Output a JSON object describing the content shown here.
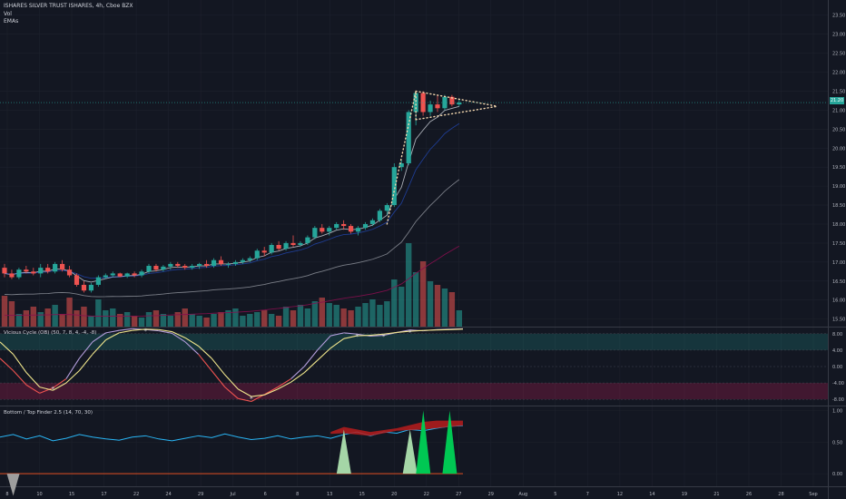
{
  "header": {
    "symbol_line": "ISHARES SILVER TRUST ISHARES, 4h, Cboe BZX",
    "volume_label": "Vol",
    "ema_label": "EMAs"
  },
  "price_badge": "21.20",
  "colors": {
    "background": "#131722",
    "up": "#26a69a",
    "down": "#ef5350",
    "grid": "#1e222d",
    "pattern": "#f5d9b0"
  },
  "chart_data": [
    {
      "type": "candlestick",
      "title": "ISHARES SILVER TRUST ISHARES, 4h, Cboe BZX",
      "ylim": [
        15.3,
        23.9
      ],
      "y_ticks": [
        "23.50",
        "23.00",
        "22.50",
        "22.00",
        "21.50",
        "21.00",
        "20.50",
        "20.00",
        "19.50",
        "19.00",
        "18.50",
        "18.00",
        "17.50",
        "17.00",
        "16.50",
        "16.00",
        "15.50"
      ],
      "y_tick_values": [
        23.5,
        23.0,
        22.5,
        22.0,
        21.5,
        21.0,
        20.5,
        20.0,
        19.5,
        19.0,
        18.5,
        18.0,
        17.5,
        17.0,
        16.5,
        16.0,
        15.5
      ],
      "last_price": 21.2,
      "x_tick_labels": [
        "8",
        "10",
        "15",
        "17",
        "22",
        "24",
        "29",
        "Jul",
        "6",
        "8",
        "13",
        "15",
        "20",
        "22",
        "27",
        "29",
        "Aug",
        "5",
        "7",
        "12",
        "14",
        "19",
        "21",
        "26",
        "28",
        "Sep"
      ],
      "ohlc": [
        [
          16.85,
          16.95,
          16.6,
          16.7
        ],
        [
          16.7,
          16.8,
          16.55,
          16.6
        ],
        [
          16.6,
          16.85,
          16.55,
          16.8
        ],
        [
          16.8,
          16.9,
          16.7,
          16.75
        ],
        [
          16.75,
          16.85,
          16.65,
          16.7
        ],
        [
          16.7,
          16.95,
          16.6,
          16.85
        ],
        [
          16.85,
          16.95,
          16.7,
          16.75
        ],
        [
          16.75,
          17.0,
          16.7,
          16.95
        ],
        [
          16.95,
          17.05,
          16.75,
          16.8
        ],
        [
          16.8,
          16.9,
          16.6,
          16.65
        ],
        [
          16.65,
          16.7,
          16.35,
          16.4
        ],
        [
          16.4,
          16.5,
          16.2,
          16.25
        ],
        [
          16.25,
          16.45,
          16.2,
          16.4
        ],
        [
          16.4,
          16.65,
          16.35,
          16.6
        ],
        [
          16.6,
          16.7,
          16.55,
          16.65
        ],
        [
          16.65,
          16.75,
          16.6,
          16.7
        ],
        [
          16.7,
          16.72,
          16.6,
          16.62
        ],
        [
          16.62,
          16.72,
          16.58,
          16.7
        ],
        [
          16.7,
          16.75,
          16.6,
          16.65
        ],
        [
          16.65,
          16.8,
          16.6,
          16.75
        ],
        [
          16.75,
          16.95,
          16.7,
          16.9
        ],
        [
          16.9,
          16.95,
          16.75,
          16.8
        ],
        [
          16.8,
          16.92,
          16.75,
          16.88
        ],
        [
          16.88,
          17.0,
          16.8,
          16.95
        ],
        [
          16.95,
          17.0,
          16.85,
          16.9
        ],
        [
          16.9,
          16.95,
          16.8,
          16.85
        ],
        [
          16.85,
          16.95,
          16.8,
          16.9
        ],
        [
          16.9,
          16.98,
          16.82,
          16.95
        ],
        [
          16.95,
          17.05,
          16.85,
          16.9
        ],
        [
          16.9,
          17.1,
          16.85,
          17.05
        ],
        [
          17.05,
          17.15,
          16.9,
          16.95
        ],
        [
          16.95,
          17.0,
          16.85,
          16.95
        ],
        [
          16.95,
          17.05,
          16.9,
          17.0
        ],
        [
          17.0,
          17.1,
          16.95,
          17.05
        ],
        [
          17.05,
          17.15,
          17.0,
          17.1
        ],
        [
          17.1,
          17.35,
          17.05,
          17.3
        ],
        [
          17.3,
          17.4,
          17.15,
          17.25
        ],
        [
          17.25,
          17.5,
          17.2,
          17.45
        ],
        [
          17.45,
          17.55,
          17.3,
          17.35
        ],
        [
          17.35,
          17.55,
          17.3,
          17.5
        ],
        [
          17.5,
          17.7,
          17.4,
          17.45
        ],
        [
          17.45,
          17.55,
          17.4,
          17.5
        ],
        [
          17.5,
          17.7,
          17.45,
          17.65
        ],
        [
          17.65,
          17.95,
          17.6,
          17.9
        ],
        [
          17.9,
          18.0,
          17.75,
          17.8
        ],
        [
          17.8,
          17.95,
          17.7,
          17.9
        ],
        [
          17.9,
          18.05,
          17.85,
          18.0
        ],
        [
          18.0,
          18.1,
          17.85,
          17.95
        ],
        [
          17.95,
          18.0,
          17.75,
          17.8
        ],
        [
          17.8,
          17.95,
          17.7,
          17.9
        ],
        [
          17.9,
          18.05,
          17.85,
          18.0
        ],
        [
          18.0,
          18.15,
          17.95,
          18.1
        ],
        [
          18.1,
          18.4,
          18.05,
          18.35
        ],
        [
          18.35,
          18.55,
          18.25,
          18.5
        ],
        [
          18.5,
          19.6,
          18.45,
          19.5
        ],
        [
          19.5,
          19.7,
          19.4,
          19.6
        ],
        [
          19.6,
          21.0,
          19.55,
          20.95
        ],
        [
          20.95,
          21.5,
          20.6,
          21.45
        ],
        [
          21.45,
          21.5,
          20.85,
          20.95
        ],
        [
          20.95,
          21.25,
          20.85,
          21.15
        ],
        [
          21.15,
          21.4,
          20.95,
          21.05
        ],
        [
          21.05,
          21.4,
          21.0,
          21.35
        ],
        [
          21.35,
          21.4,
          21.1,
          21.15
        ],
        [
          21.15,
          21.3,
          21.1,
          21.2
        ]
      ],
      "volume": [
        34,
        28,
        14,
        18,
        22,
        16,
        20,
        24,
        14,
        32,
        18,
        22,
        12,
        30,
        18,
        20,
        14,
        16,
        12,
        10,
        16,
        18,
        14,
        12,
        16,
        20,
        14,
        12,
        10,
        14,
        16,
        18,
        20,
        12,
        14,
        16,
        18,
        14,
        12,
        22,
        18,
        24,
        20,
        28,
        32,
        26,
        24,
        20,
        18,
        22,
        26,
        30,
        24,
        28,
        52,
        44,
        92,
        60,
        72,
        50,
        46,
        42,
        38,
        18
      ],
      "ema_series": [
        "EMA fast",
        "EMA slow"
      ]
    },
    {
      "type": "line",
      "title": "Vicious Cycle (OB) (50, 7, 8, 4, -4, -8)",
      "ylim": [
        -9.5,
        9.5
      ],
      "y_ticks": [
        "8.00",
        "4.00",
        "0.00",
        "-4.00",
        "-8.00"
      ],
      "y_tick_values": [
        8,
        4,
        0,
        -4,
        -8
      ],
      "bands": [
        {
          "from": 4,
          "to": 8,
          "color": "#26a69a"
        },
        {
          "from": -8,
          "to": -4,
          "color": "#e91e63"
        }
      ],
      "series": [
        {
          "values": [
            2,
            -1,
            -4.5,
            -6.5,
            -5.2,
            -3,
            2,
            6,
            8.2,
            8.8,
            9.2,
            9.0,
            8.7,
            8.1,
            6,
            3,
            -1,
            -5,
            -7.8,
            -8.5,
            -6.8,
            -5,
            -3,
            0,
            4,
            7.5,
            8.2,
            7.9,
            7.4,
            7.6,
            8.3,
            8.9,
            8.7,
            9.0,
            9.1,
            9.2
          ]
        },
        {
          "values": [
            6,
            3,
            -1.5,
            -5,
            -5.8,
            -4,
            -1,
            3,
            6.5,
            8.2,
            8.8,
            9.1,
            9.0,
            8.5,
            7,
            5,
            2,
            -2,
            -5.5,
            -7.3,
            -6.9,
            -5.5,
            -3.8,
            -1.5,
            1.5,
            4.5,
            6.8,
            7.5,
            7.6,
            7.9,
            8.3,
            8.6,
            8.8,
            8.9,
            9.0,
            9.1
          ]
        }
      ]
    },
    {
      "type": "line",
      "title": "Bottom / Top Finder 2.5 (14, 70, 30)",
      "ylim": [
        -0.2,
        1.05
      ],
      "y_ticks": [
        "1.00",
        "0.50",
        "0.00"
      ],
      "y_tick_values": [
        1.0,
        0.5,
        0.0
      ],
      "series": [
        {
          "values": [
            0.58,
            0.62,
            0.55,
            0.6,
            0.52,
            0.56,
            0.62,
            0.58,
            0.55,
            0.53,
            0.58,
            0.6,
            0.55,
            0.52,
            0.56,
            0.6,
            0.57,
            0.63,
            0.58,
            0.54,
            0.56,
            0.6,
            0.55,
            0.58,
            0.6,
            0.56,
            0.62,
            0.66,
            0.6,
            0.66,
            0.64,
            0.7,
            0.68,
            0.72,
            0.75,
            0.76
          ]
        }
      ],
      "signals": [
        {
          "type": "bottom",
          "x": 1,
          "height": 0.35,
          "color": "#9e9e9e"
        },
        {
          "type": "top",
          "x": 26,
          "height": 0.7,
          "color": "#a5d6a7"
        },
        {
          "type": "top",
          "x": 31,
          "height": 0.7,
          "color": "#a5d6a7"
        },
        {
          "type": "top",
          "x": 32,
          "height": 1.0,
          "color": "#00c853"
        },
        {
          "type": "top",
          "x": 34,
          "height": 1.0,
          "color": "#00c853"
        }
      ]
    }
  ],
  "panes": {
    "oscillator_title": "Vicious Cycle (OB) (50, 7, 8, 4, -4, -8)",
    "finder_title": "Bottom / Top Finder 2.5 (14, 70, 30)"
  }
}
